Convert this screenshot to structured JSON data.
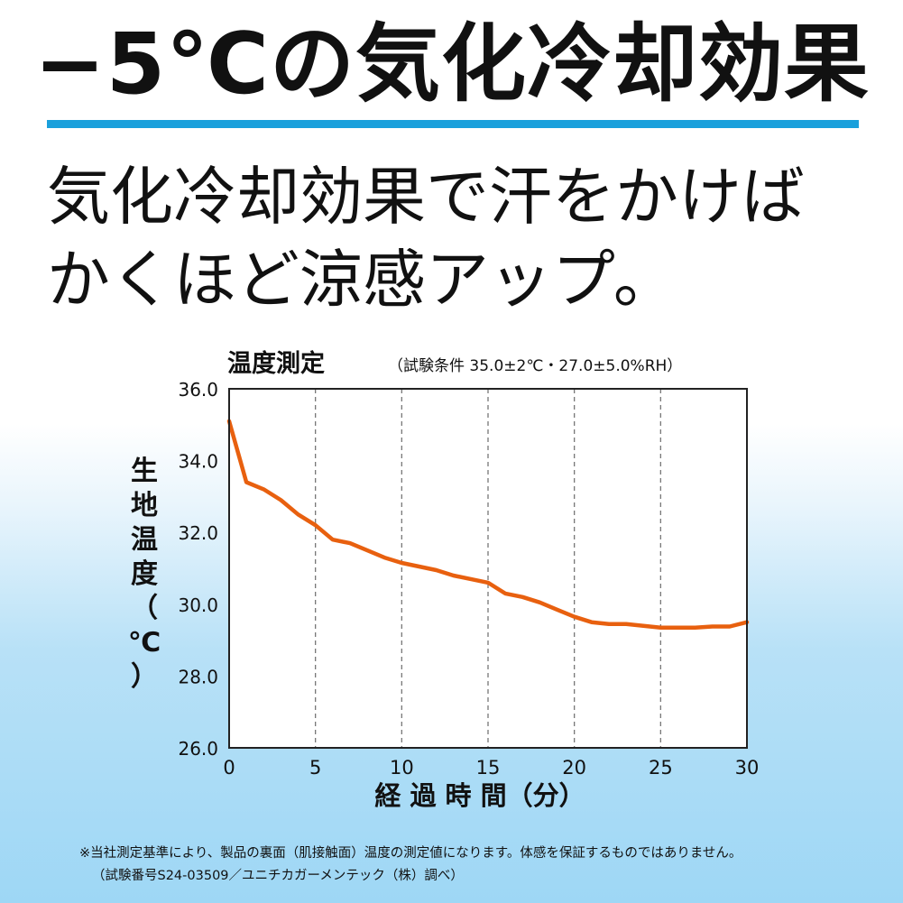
{
  "headline": "−5℃の気化冷却効果",
  "subhead_line1": "気化冷却効果で汗をかけば",
  "subhead_line2": "かくほど涼感アップ。",
  "chart_data": {
    "type": "line",
    "title": "温度測定",
    "subtitle": "（試験条件 35.0±2℃・27.0±5.0%RH）",
    "xlabel": "経 過 時 間（分）",
    "ylabel": "生地温度（℃）",
    "ylabel_chars": [
      "生",
      "地",
      "温",
      "度",
      "（",
      "℃",
      "）"
    ],
    "xlim": [
      0,
      30
    ],
    "ylim": [
      26,
      36
    ],
    "x_ticks": [
      "0",
      "5",
      "10",
      "15",
      "20",
      "25",
      "30"
    ],
    "y_ticks": [
      "36.0",
      "34.0",
      "32.0",
      "30.0",
      "28.0",
      "26.0"
    ],
    "grid": "vertical-dashed",
    "line_color": "#e8600f",
    "series": [
      {
        "x": [
          0,
          1,
          2,
          3,
          4,
          5,
          6,
          7,
          8,
          9,
          10,
          11,
          12,
          13,
          14,
          15,
          16,
          17,
          18,
          19,
          20,
          21,
          22,
          23,
          24,
          25,
          26,
          27,
          28,
          29,
          30
        ],
        "values": [
          35.1,
          33.4,
          33.2,
          32.9,
          32.5,
          32.2,
          31.8,
          31.7,
          31.5,
          31.3,
          31.15,
          31.05,
          30.95,
          30.8,
          30.7,
          30.6,
          30.3,
          30.2,
          30.05,
          29.85,
          29.65,
          29.5,
          29.45,
          29.45,
          29.4,
          29.35,
          29.35,
          29.35,
          29.38,
          29.38,
          29.5
        ]
      }
    ]
  },
  "footnote_line1": "※当社測定基準により、製品の裏面（肌接触面）温度の測定値になります。体感を保証するものではありません。",
  "footnote_line2": "（試験番号S24-03509／ユニチカガーメンテック（株）調べ）"
}
